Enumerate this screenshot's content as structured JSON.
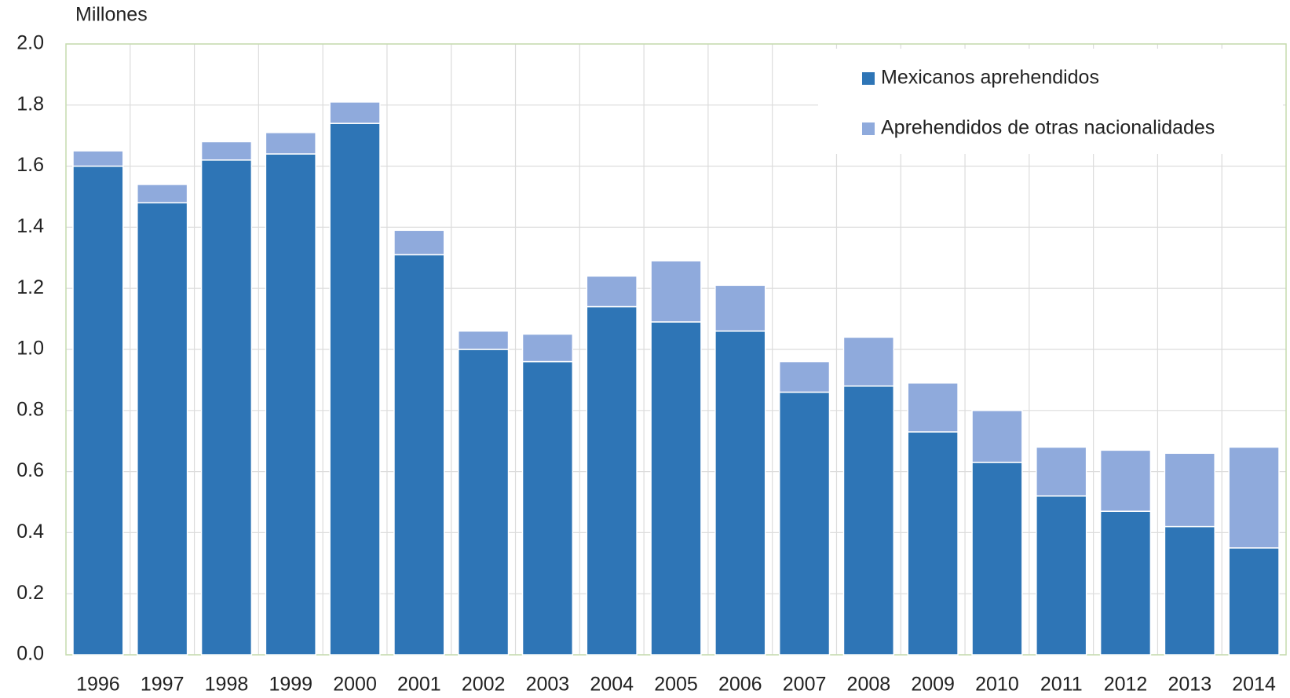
{
  "chart_data": {
    "type": "stacked_bar",
    "y_axis_label": "Millones",
    "categories": [
      "1996",
      "1997",
      "1998",
      "1999",
      "2000",
      "2001",
      "2002",
      "2003",
      "2004",
      "2005",
      "2006",
      "2007",
      "2008",
      "2009",
      "2010",
      "2011",
      "2012",
      "2013",
      "2014"
    ],
    "series": [
      {
        "name": "Mexicanos aprehendidos",
        "color": "#2e75b6",
        "values": [
          1.6,
          1.48,
          1.62,
          1.64,
          1.74,
          1.31,
          1.0,
          0.96,
          1.14,
          1.09,
          1.06,
          0.86,
          0.88,
          0.73,
          0.63,
          0.52,
          0.47,
          0.42,
          0.35
        ]
      },
      {
        "name": "Aprehendidos de otras nacionalidades",
        "color": "#8faadc",
        "values": [
          0.05,
          0.06,
          0.06,
          0.07,
          0.07,
          0.08,
          0.06,
          0.09,
          0.1,
          0.2,
          0.15,
          0.1,
          0.16,
          0.16,
          0.17,
          0.16,
          0.2,
          0.24,
          0.33
        ]
      }
    ],
    "ylim": [
      0,
      2
    ],
    "yticks": [
      {
        "value": 0,
        "label": "0.0"
      },
      0.2,
      0.4,
      0.6,
      0.8,
      {
        "value": 1,
        "label": "1.0"
      },
      1.2,
      1.4,
      1.6,
      1.8,
      {
        "value": 2,
        "label": "2.0"
      }
    ],
    "grid": true,
    "legend": "top-right"
  }
}
